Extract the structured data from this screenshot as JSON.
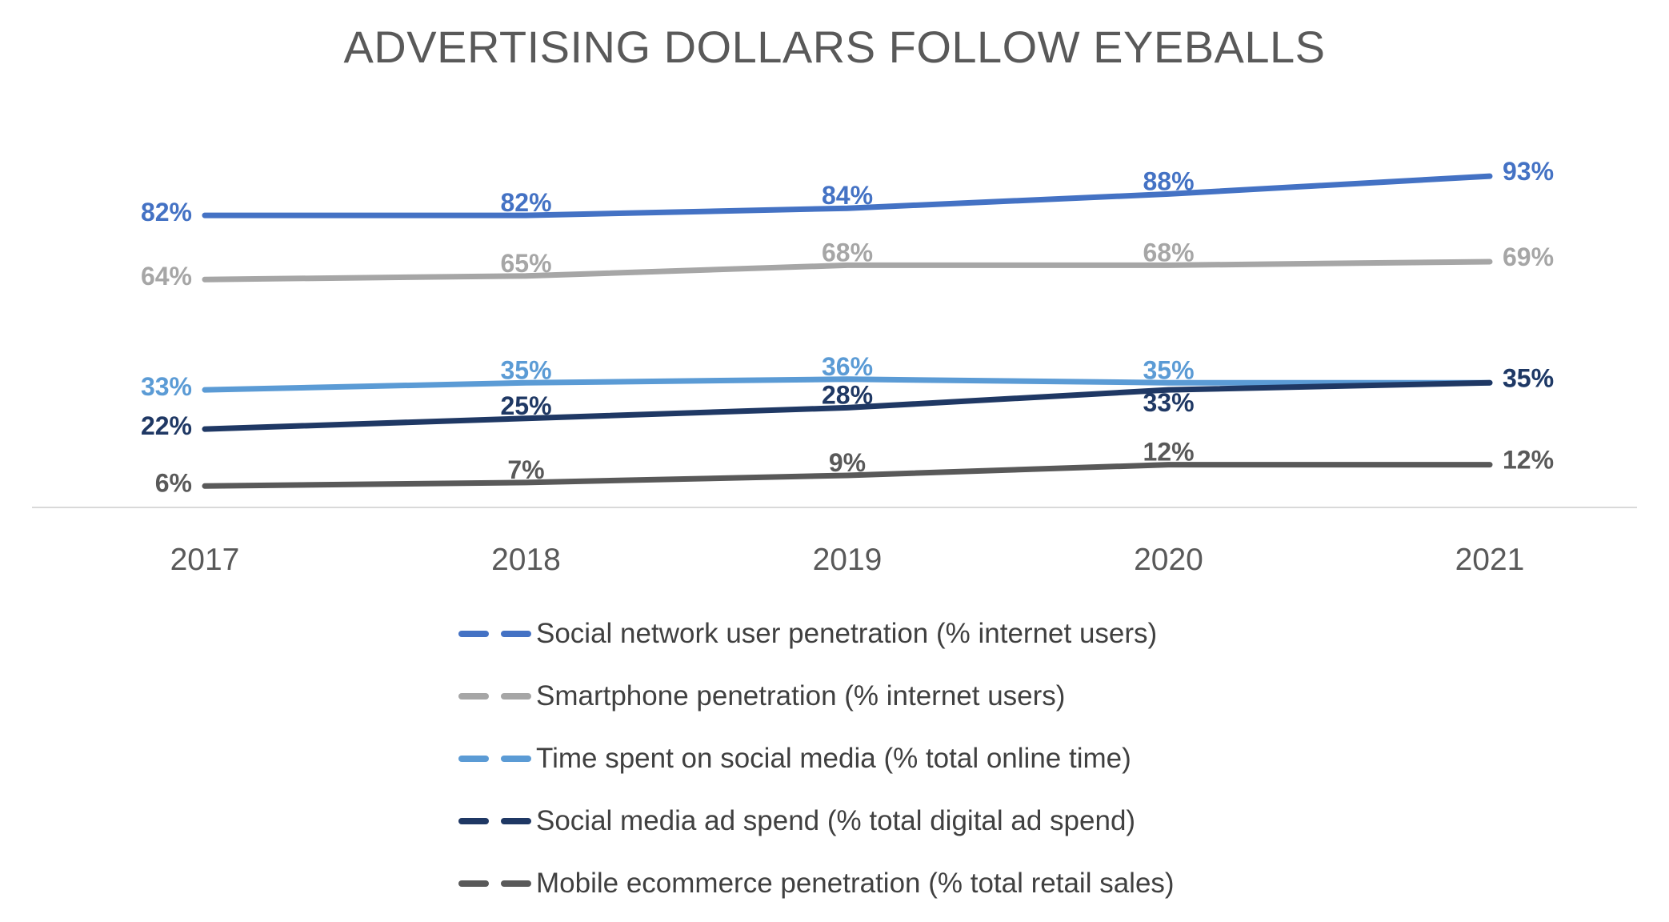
{
  "title": "ADVERTISING DOLLARS FOLLOW EYEBALLS",
  "chart_data": {
    "type": "line",
    "x": [
      "2017",
      "2018",
      "2019",
      "2020",
      "2021"
    ],
    "series": [
      {
        "name": "Social network user penetration (% internet users)",
        "color": "#4472C4",
        "values": [
          82,
          82,
          84,
          88,
          93
        ],
        "label_positions": [
          "left",
          "above-near",
          "above-near",
          "above-near",
          "right"
        ]
      },
      {
        "name": "Smartphone penetration (% internet users)",
        "color": "#A6A6A6",
        "values": [
          64,
          65,
          68,
          68,
          69
        ],
        "label_positions": [
          "left",
          "above-near",
          "above-near",
          "above-near",
          "right"
        ]
      },
      {
        "name": "Time spent on social media (% total online time)",
        "color": "#5B9BD5",
        "values": [
          33,
          35,
          36,
          35,
          35
        ],
        "label_positions": [
          "left",
          "above-near",
          "above-near",
          "above-near",
          "right"
        ]
      },
      {
        "name": "Social media ad spend (% total digital ad spend)",
        "color": "#1F3864",
        "values": [
          22,
          25,
          28,
          33,
          35
        ],
        "label_positions": [
          "left",
          "above-near",
          "above-near",
          "below-near",
          "right"
        ]
      },
      {
        "name": "Mobile ecommerce penetration (% total retail sales)",
        "color": "#595959",
        "values": [
          6,
          7,
          9,
          12,
          12
        ],
        "label_positions": [
          "left",
          "above-near",
          "above-near",
          "above-near",
          "right"
        ]
      }
    ],
    "data_label_format": "percent",
    "ylim": [
      0,
      100
    ],
    "grid": false,
    "legend_position": "bottom",
    "axis_color": "#D9D9D9",
    "text_color": "#595959"
  }
}
